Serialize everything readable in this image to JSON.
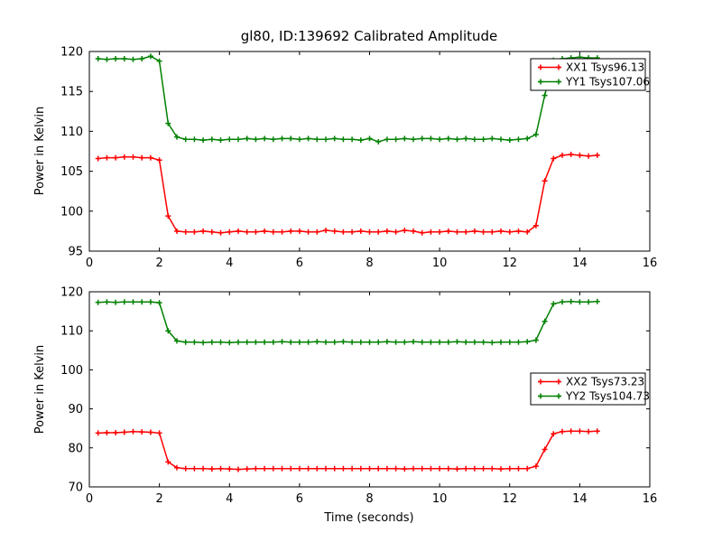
{
  "figure": {
    "title": "gl80, ID:139692 Calibrated Amplitude",
    "background": "#ffffff",
    "axis_color": "#000000",
    "text_color": "#000000"
  },
  "chart_data": [
    {
      "type": "line",
      "title": "",
      "xlabel": "",
      "ylabel": "Power in Kelvin",
      "xlim": [
        0,
        16
      ],
      "ylim": [
        95,
        120
      ],
      "xticks": [
        0,
        2,
        4,
        6,
        8,
        10,
        12,
        14,
        16
      ],
      "yticks": [
        95,
        100,
        105,
        110,
        115,
        120
      ],
      "grid": false,
      "legend": {
        "position": "upper right"
      },
      "x": [
        0.25,
        0.5,
        0.75,
        1.0,
        1.25,
        1.5,
        1.75,
        2.0,
        2.25,
        2.5,
        2.75,
        3.0,
        3.25,
        3.5,
        3.75,
        4.0,
        4.25,
        4.5,
        4.75,
        5.0,
        5.25,
        5.5,
        5.75,
        6.0,
        6.25,
        6.5,
        6.75,
        7.0,
        7.25,
        7.5,
        7.75,
        8.0,
        8.25,
        8.5,
        8.75,
        9.0,
        9.25,
        9.5,
        9.75,
        10.0,
        10.25,
        10.5,
        10.75,
        11.0,
        11.25,
        11.5,
        11.75,
        12.0,
        12.25,
        12.5,
        12.75,
        13.0,
        13.25,
        13.5,
        13.75,
        14.0,
        14.25,
        14.5
      ],
      "series": [
        {
          "name": "XX1 Tsys96.13",
          "color": "#ff0000",
          "marker": "plus",
          "values": [
            106.6,
            106.7,
            106.7,
            106.8,
            106.8,
            106.7,
            106.7,
            106.4,
            99.4,
            97.5,
            97.4,
            97.4,
            97.5,
            97.4,
            97.3,
            97.4,
            97.5,
            97.4,
            97.4,
            97.5,
            97.4,
            97.4,
            97.5,
            97.5,
            97.4,
            97.4,
            97.6,
            97.5,
            97.4,
            97.4,
            97.5,
            97.4,
            97.4,
            97.5,
            97.4,
            97.6,
            97.5,
            97.3,
            97.4,
            97.4,
            97.5,
            97.4,
            97.4,
            97.5,
            97.4,
            97.4,
            97.5,
            97.4,
            97.5,
            97.4,
            98.2,
            103.8,
            106.6,
            107.0,
            107.1,
            107.0,
            106.9,
            107.0
          ]
        },
        {
          "name": "YY1 Tsys107.06",
          "color": "#008000",
          "marker": "plus",
          "values": [
            119.1,
            119.0,
            119.1,
            119.1,
            119.0,
            119.1,
            119.4,
            118.8,
            111.0,
            109.3,
            109.0,
            109.0,
            108.9,
            109.0,
            108.9,
            109.0,
            109.0,
            109.1,
            109.0,
            109.1,
            109.0,
            109.1,
            109.1,
            109.0,
            109.1,
            109.0,
            109.0,
            109.1,
            109.0,
            109.0,
            108.9,
            109.1,
            108.7,
            109.0,
            109.0,
            109.1,
            109.0,
            109.1,
            109.1,
            109.0,
            109.1,
            109.0,
            109.1,
            109.0,
            109.0,
            109.1,
            109.0,
            108.9,
            109.0,
            109.1,
            109.6,
            114.5,
            118.9,
            119.1,
            119.2,
            119.3,
            119.2,
            119.2
          ]
        }
      ]
    },
    {
      "type": "line",
      "title": "",
      "xlabel": "Time (seconds)",
      "ylabel": "Power in Kelvin",
      "xlim": [
        0,
        16
      ],
      "ylim": [
        70,
        120
      ],
      "xticks": [
        0,
        2,
        4,
        6,
        8,
        10,
        12,
        14,
        16
      ],
      "yticks": [
        70,
        80,
        90,
        100,
        110,
        120
      ],
      "grid": false,
      "legend": {
        "position": "center right"
      },
      "x": [
        0.25,
        0.5,
        0.75,
        1.0,
        1.25,
        1.5,
        1.75,
        2.0,
        2.25,
        2.5,
        2.75,
        3.0,
        3.25,
        3.5,
        3.75,
        4.0,
        4.25,
        4.5,
        4.75,
        5.0,
        5.25,
        5.5,
        5.75,
        6.0,
        6.25,
        6.5,
        6.75,
        7.0,
        7.25,
        7.5,
        7.75,
        8.0,
        8.25,
        8.5,
        8.75,
        9.0,
        9.25,
        9.5,
        9.75,
        10.0,
        10.25,
        10.5,
        10.75,
        11.0,
        11.25,
        11.5,
        11.75,
        12.0,
        12.25,
        12.5,
        12.75,
        13.0,
        13.25,
        13.5,
        13.75,
        14.0,
        14.25,
        14.5
      ],
      "series": [
        {
          "name": "XX2 Tsys73.23",
          "color": "#ff0000",
          "marker": "plus",
          "values": [
            83.8,
            83.9,
            83.9,
            84.0,
            84.2,
            84.1,
            84.0,
            83.8,
            76.4,
            74.9,
            74.7,
            74.7,
            74.7,
            74.6,
            74.7,
            74.6,
            74.5,
            74.6,
            74.7,
            74.7,
            74.7,
            74.7,
            74.7,
            74.7,
            74.7,
            74.7,
            74.7,
            74.7,
            74.7,
            74.7,
            74.7,
            74.7,
            74.7,
            74.7,
            74.7,
            74.6,
            74.7,
            74.7,
            74.7,
            74.7,
            74.7,
            74.6,
            74.7,
            74.7,
            74.7,
            74.7,
            74.6,
            74.7,
            74.7,
            74.7,
            75.3,
            79.6,
            83.6,
            84.2,
            84.3,
            84.3,
            84.2,
            84.3
          ]
        },
        {
          "name": "YY2 Tsys104.73",
          "color": "#008000",
          "marker": "plus",
          "values": [
            117.3,
            117.4,
            117.3,
            117.4,
            117.4,
            117.4,
            117.4,
            117.2,
            110.0,
            107.4,
            107.1,
            107.1,
            107.0,
            107.1,
            107.1,
            107.0,
            107.1,
            107.1,
            107.1,
            107.1,
            107.1,
            107.2,
            107.1,
            107.1,
            107.1,
            107.2,
            107.1,
            107.1,
            107.2,
            107.1,
            107.1,
            107.1,
            107.1,
            107.2,
            107.1,
            107.1,
            107.2,
            107.1,
            107.1,
            107.1,
            107.1,
            107.2,
            107.1,
            107.1,
            107.1,
            107.0,
            107.1,
            107.1,
            107.1,
            107.2,
            107.6,
            112.4,
            116.9,
            117.4,
            117.5,
            117.4,
            117.4,
            117.5
          ]
        }
      ]
    }
  ]
}
